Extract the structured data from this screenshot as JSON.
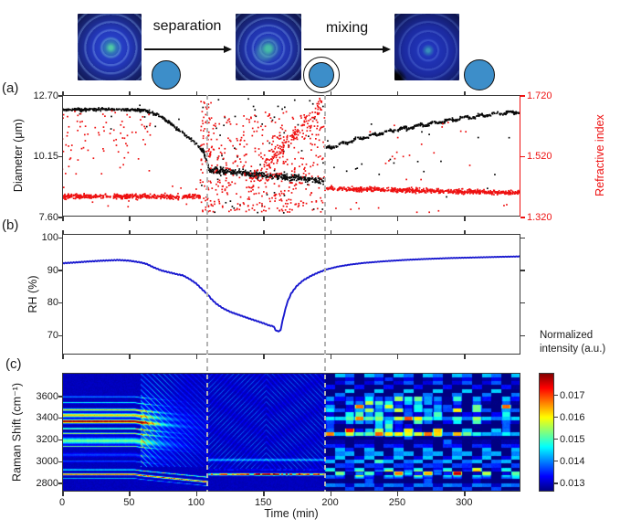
{
  "figure": {
    "panel_labels": [
      "(a)",
      "(b)",
      "(c)"
    ]
  },
  "schematic": {
    "arrow_labels": [
      "separation",
      "mixing"
    ],
    "droplet_color": "#3d8ec9",
    "droplet_states": [
      "mixed",
      "core-shell",
      "mixed"
    ]
  },
  "chart_data": [
    {
      "type": "scatter",
      "panel": "a",
      "xlim": [
        0,
        342
      ],
      "xticks": [
        0,
        50,
        100,
        150,
        200,
        250,
        300
      ],
      "dashed_lines_t": [
        108,
        196
      ],
      "left_axis": {
        "label": "Diameter (μm)",
        "tick_labels": [
          "12.70",
          "10.15",
          "7.60"
        ],
        "ticks": [
          12.7,
          10.15,
          7.6
        ],
        "lim": [
          7.6,
          12.7
        ],
        "color": "#1a1a1a"
      },
      "right_axis": {
        "label": "Refractive index",
        "tick_labels": [
          "1.720",
          "1.520",
          "1.320"
        ],
        "ticks": [
          1.72,
          1.52,
          1.32
        ],
        "lim": [
          1.32,
          1.72
        ],
        "color": "#ee1111"
      },
      "series": [
        {
          "name": "diameter",
          "color": "#0a0a0a",
          "trend": [
            [
              0,
              12.08
            ],
            [
              30,
              12.1
            ],
            [
              55,
              12.07
            ],
            [
              62,
              12.04
            ],
            [
              72,
              11.85
            ],
            [
              80,
              11.55
            ],
            [
              88,
              11.2
            ],
            [
              96,
              10.85
            ],
            [
              102,
              10.55
            ],
            [
              106,
              10.25
            ],
            [
              110,
              9.55
            ],
            [
              130,
              9.45
            ],
            [
              150,
              9.35
            ],
            [
              170,
              9.25
            ],
            [
              195,
              9.1
            ],
            [
              196.5,
              10.45
            ],
            [
              220,
              10.85
            ],
            [
              245,
              11.2
            ],
            [
              270,
              11.45
            ],
            [
              295,
              11.7
            ],
            [
              320,
              11.9
            ],
            [
              342,
              12.0
            ]
          ],
          "noise_spans": [
            [
              0,
              104,
              0.07
            ],
            [
              104,
              110,
              0.15
            ],
            [
              110,
              196,
              0.17
            ],
            [
              196,
              342,
              0.06
            ]
          ],
          "density_spans": [
            [
              0,
              104,
              3.4
            ],
            [
              104,
              110,
              6.0
            ],
            [
              110,
              196,
              4.5
            ],
            [
              196,
              342,
              3.4
            ]
          ],
          "outliers": [
            {
              "span": [
                104,
                196
              ],
              "count": 60,
              "range": [
                7.75,
                12.6
              ]
            },
            {
              "span": [
                0,
                104
              ],
              "count": 12,
              "range": [
                11.2,
                12.6
              ]
            },
            {
              "span": [
                196,
                342
              ],
              "count": 22,
              "range": [
                8.3,
                11.6
              ]
            }
          ]
        },
        {
          "name": "refractive_index",
          "color": "#ee1111",
          "flat1": {
            "span": [
              0,
              103
            ],
            "value": 1.386,
            "noise": 0.01,
            "density": 4.5
          },
          "upper_outliers": {
            "span": [
              0,
              66
            ],
            "count": 85,
            "range": [
              1.45,
              1.67
            ]
          },
          "stripe": {
            "span": [
              103,
              112
            ],
            "count": 90,
            "range": [
              1.335,
              1.71
            ]
          },
          "chaos": {
            "span": [
              112,
              196
            ],
            "count": 430,
            "range": [
              1.335,
              1.665
            ]
          },
          "ridge": {
            "span": [
              138,
              194
            ],
            "count": 150,
            "from": 1.42,
            "to": 1.69,
            "spread": 0.035
          },
          "flat2": {
            "span": [
              196,
              342
            ],
            "from": 1.413,
            "to": 1.398,
            "noise": 0.009,
            "density": 4.5
          },
          "late_outliers": {
            "span": [
              215,
              310
            ],
            "count": 20,
            "range": [
              1.44,
              1.63
            ]
          }
        }
      ]
    },
    {
      "type": "line",
      "panel": "b",
      "ylabel": "RH (%)",
      "yticks": [
        100,
        90,
        80,
        70
      ],
      "ylim": [
        64,
        101
      ],
      "xlim": [
        0,
        342
      ],
      "xticks": [
        0,
        50,
        100,
        150,
        200,
        250,
        300
      ],
      "color": "#1818cf",
      "points": [
        [
          0,
          92.0
        ],
        [
          8,
          92.2
        ],
        [
          18,
          92.5
        ],
        [
          30,
          92.8
        ],
        [
          42,
          93.0
        ],
        [
          50,
          92.8
        ],
        [
          58,
          92.3
        ],
        [
          63,
          91.8
        ],
        [
          68,
          90.8
        ],
        [
          74,
          89.8
        ],
        [
          80,
          89.2
        ],
        [
          86,
          88.6
        ],
        [
          90,
          88.3
        ],
        [
          95,
          87.2
        ],
        [
          100,
          85.8
        ],
        [
          105,
          83.8
        ],
        [
          109,
          82.3
        ],
        [
          111,
          81.2
        ],
        [
          115,
          79.6
        ],
        [
          120,
          78.2
        ],
        [
          126,
          77.0
        ],
        [
          133,
          76.0
        ],
        [
          140,
          75.0
        ],
        [
          146,
          74.2
        ],
        [
          151,
          73.5
        ],
        [
          154,
          73.0
        ],
        [
          156,
          72.8
        ],
        [
          158,
          72.6
        ],
        [
          159,
          71.6
        ],
        [
          161,
          71.1
        ],
        [
          163,
          71.4
        ],
        [
          164,
          73.5
        ],
        [
          166,
          77.0
        ],
        [
          168,
          80.0
        ],
        [
          171,
          82.8
        ],
        [
          175,
          85.0
        ],
        [
          180,
          86.8
        ],
        [
          186,
          88.2
        ],
        [
          192,
          89.3
        ],
        [
          198,
          90.2
        ],
        [
          206,
          91.0
        ],
        [
          215,
          91.6
        ],
        [
          225,
          92.1
        ],
        [
          240,
          92.6
        ],
        [
          255,
          93.0
        ],
        [
          270,
          93.3
        ],
        [
          290,
          93.6
        ],
        [
          310,
          93.8
        ],
        [
          330,
          94.0
        ],
        [
          342,
          94.1
        ]
      ]
    },
    {
      "type": "heatmap",
      "panel": "c",
      "ylabel": "Raman Shift (cm⁻¹)",
      "xlabel": "Time (min)",
      "yticks": [
        3600,
        3400,
        3200,
        3000,
        2800
      ],
      "ylim": [
        2720,
        3810
      ],
      "xlim": [
        0,
        342
      ],
      "xticks": [
        0,
        50,
        100,
        150,
        200,
        250,
        300
      ],
      "colormap": "jet",
      "value_range": [
        0.0126,
        0.018
      ],
      "colorbar": {
        "title": "Normalized intensity (a.u.)",
        "title_lines": [
          "Normalized",
          "intensity (a.u.)"
        ],
        "tick_labels": [
          "0.017",
          "0.016",
          "0.015",
          "0.014",
          "0.013"
        ],
        "ticks": [
          0.017,
          0.016,
          0.015,
          0.014,
          0.013
        ]
      },
      "regimes": {
        "bands_end": 58,
        "fringe_end": 109,
        "dark_end": 196,
        "tmax": 342
      },
      "bands": [
        {
          "center": 3595,
          "width": 5,
          "amp": 0.0016
        },
        {
          "center": 3540,
          "width": 5,
          "amp": 0.0019
        },
        {
          "center": 3475,
          "width": 9,
          "amp": 0.0033
        },
        {
          "center": 3425,
          "width": 16,
          "amp": 0.0034
        },
        {
          "center": 3368,
          "width": 15,
          "amp": 0.0052
        },
        {
          "center": 3302,
          "width": 6,
          "amp": 0.003
        },
        {
          "center": 3258,
          "width": 7,
          "amp": 0.0027
        },
        {
          "center": 3190,
          "width": 26,
          "amp": 0.0023
        },
        {
          "center": 3140,
          "width": 5,
          "amp": 0.0023
        },
        {
          "center": 3062,
          "width": 14,
          "amp": 0.0007
        },
        {
          "center": 3002,
          "width": 5,
          "amp": 0.0011
        },
        {
          "center": 2925,
          "width": 5,
          "amp": 0.0026
        },
        {
          "center": 2882,
          "width": 8,
          "amp": 0.0042
        },
        {
          "center": 2846,
          "width": 4,
          "amp": 0.0013
        }
      ]
    }
  ]
}
